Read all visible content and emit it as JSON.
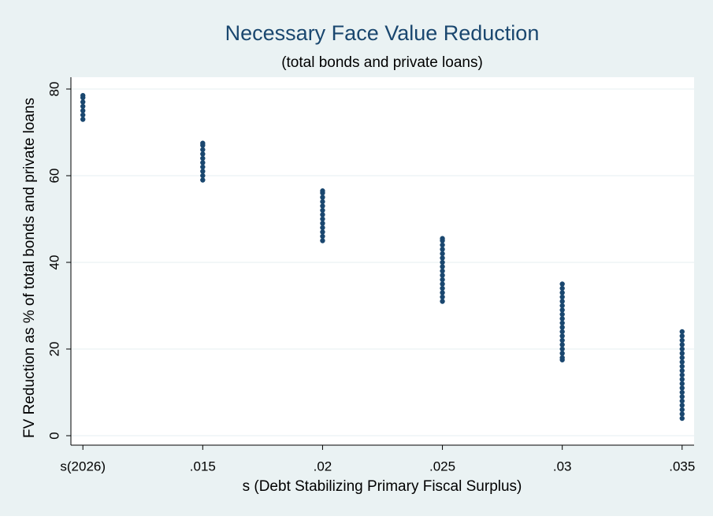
{
  "chart_data": {
    "type": "scatter",
    "title": "Necessary Face Value Reduction",
    "subtitle": "(total bonds and private loans)",
    "x_label": "s (Debt Stabilizing Primary Fiscal Surplus)",
    "y_label": "FV Reduction as % of total bonds and private loans",
    "color": "#1a476f",
    "grid": true,
    "xlim": [
      0.0095,
      0.0355
    ],
    "ylim": [
      -2,
      82
    ],
    "xticks": [
      {
        "value": 0.01,
        "label": "s(2026)"
      },
      {
        "value": 0.015,
        "label": ".015"
      },
      {
        "value": 0.02,
        "label": ".02"
      },
      {
        "value": 0.025,
        "label": ".025"
      },
      {
        "value": 0.03,
        "label": ".03"
      },
      {
        "value": 0.035,
        "label": ".035"
      }
    ],
    "yticks": [
      0,
      20,
      40,
      60,
      80
    ],
    "x": [
      0.01,
      0.01,
      0.01,
      0.01,
      0.01,
      0.01,
      0.01,
      0.015,
      0.015,
      0.015,
      0.015,
      0.015,
      0.015,
      0.015,
      0.015,
      0.015,
      0.015,
      0.02,
      0.02,
      0.02,
      0.02,
      0.02,
      0.02,
      0.02,
      0.02,
      0.02,
      0.02,
      0.02,
      0.02,
      0.02,
      0.025,
      0.025,
      0.025,
      0.025,
      0.025,
      0.025,
      0.025,
      0.025,
      0.025,
      0.025,
      0.025,
      0.025,
      0.025,
      0.025,
      0.025,
      0.025,
      0.03,
      0.03,
      0.03,
      0.03,
      0.03,
      0.03,
      0.03,
      0.03,
      0.03,
      0.03,
      0.03,
      0.03,
      0.03,
      0.03,
      0.03,
      0.03,
      0.03,
      0.03,
      0.03,
      0.035,
      0.035,
      0.035,
      0.035,
      0.035,
      0.035,
      0.035,
      0.035,
      0.035,
      0.035,
      0.035,
      0.035,
      0.035,
      0.035,
      0.035,
      0.035,
      0.035,
      0.035,
      0.035,
      0.035,
      0.035
    ],
    "values": [
      73,
      74,
      75,
      76,
      77,
      78,
      78.5,
      59,
      60,
      61,
      62,
      63,
      64,
      65,
      66,
      67,
      67.5,
      45,
      46,
      47,
      48,
      49,
      50,
      51,
      52,
      53,
      54,
      55,
      56,
      56.5,
      31,
      32,
      33,
      34,
      35,
      36,
      37,
      38,
      39,
      40,
      41,
      42,
      43,
      44,
      45,
      45.5,
      17.5,
      18,
      19,
      20,
      21,
      22,
      23,
      24,
      25,
      26,
      27,
      28,
      29,
      30,
      31,
      32,
      33,
      34,
      35,
      4,
      5,
      6,
      7,
      8,
      9,
      10,
      11,
      12,
      13,
      14,
      15,
      16,
      17,
      18,
      19,
      20,
      21,
      22,
      23,
      24
    ]
  }
}
